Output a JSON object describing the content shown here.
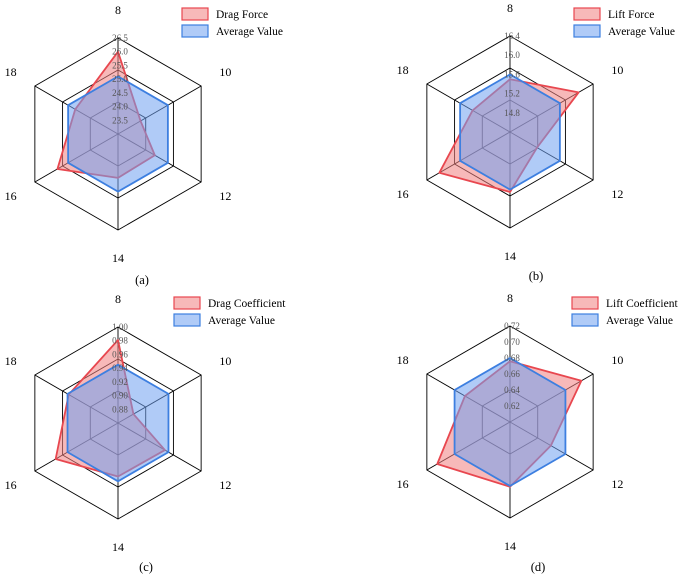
{
  "colors": {
    "series_fill": [
      "#f08080",
      "#6fa0f0"
    ],
    "series_stroke": [
      "#e8474f",
      "#3d7fe0"
    ],
    "grid": "#000000"
  },
  "chart_data": [
    {
      "type": "radar",
      "panel_label": "(a)",
      "categories": [
        "8",
        "10",
        "12",
        "14",
        "16",
        "18"
      ],
      "rlim": [
        23.0,
        26.5
      ],
      "rticks": [
        "23.5",
        "24.0",
        "24.5",
        "25.0",
        "25.5",
        "26.0",
        "26.5"
      ],
      "grid_rings": 3,
      "legend_position": "top-right",
      "series": [
        {
          "name": "Drag Force",
          "values": [
            26.0,
            23.95,
            24.55,
            24.6,
            25.55,
            24.8
          ]
        },
        {
          "name": "Average Value",
          "values": [
            25.1,
            25.1,
            25.1,
            25.1,
            25.1,
            25.1
          ]
        }
      ]
    },
    {
      "type": "radar",
      "panel_label": "(b)",
      "categories": [
        "8",
        "10",
        "12",
        "14",
        "16",
        "18"
      ],
      "rlim": [
        14.4,
        16.4
      ],
      "rticks": [
        "14.8",
        "15.2",
        "15.6",
        "16.0",
        "16.4"
      ],
      "grid_rings": 3,
      "legend_position": "top-right",
      "series": [
        {
          "name": "Lift Force",
          "values": [
            15.5,
            16.05,
            15.05,
            15.65,
            16.1,
            15.3
          ]
        },
        {
          "name": "Average Value",
          "values": [
            15.6,
            15.6,
            15.6,
            15.6,
            15.6,
            15.6
          ]
        }
      ]
    },
    {
      "type": "radar",
      "panel_label": "(c)",
      "categories": [
        "8",
        "10",
        "12",
        "14",
        "16",
        "18"
      ],
      "rlim": [
        0.86,
        1.0
      ],
      "rticks": [
        "0.88",
        "0.90",
        "0.92",
        "0.94",
        "0.96",
        "0.98",
        "1.00"
      ],
      "grid_rings": 3,
      "legend_position": "top-right",
      "series": [
        {
          "name": "Drag Coefficient",
          "values": [
            0.981,
            0.886,
            0.939,
            0.938,
            0.965,
            0.943
          ]
        },
        {
          "name": "Average Value",
          "values": [
            0.945,
            0.945,
            0.945,
            0.945,
            0.945,
            0.945
          ]
        }
      ]
    },
    {
      "type": "radar",
      "panel_label": "(d)",
      "categories": [
        "8",
        "10",
        "12",
        "14",
        "16",
        "18"
      ],
      "rlim": [
        0.6,
        0.72
      ],
      "rticks": [
        "0.62",
        "0.64",
        "0.66",
        "0.68",
        "0.70",
        "0.72"
      ],
      "grid_rings": 3,
      "legend_position": "top-right",
      "series": [
        {
          "name": "Lift Coefficient",
          "values": [
            0.676,
            0.703,
            0.659,
            0.681,
            0.705,
            0.665
          ]
        },
        {
          "name": "Average Value",
          "values": [
            0.68,
            0.68,
            0.68,
            0.68,
            0.68,
            0.68
          ]
        }
      ]
    }
  ]
}
